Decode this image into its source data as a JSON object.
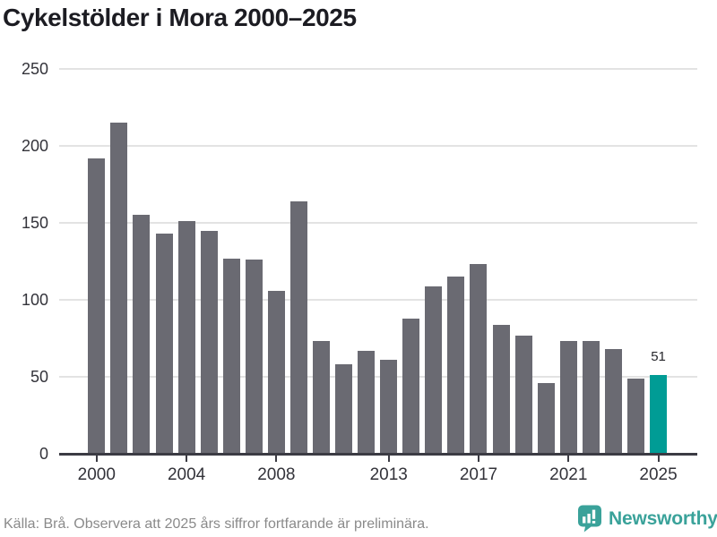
{
  "title": "Cykelstölder i Mora 2000–2025",
  "chart_data": {
    "type": "bar",
    "title": "Cykelstölder i Mora 2000–2025",
    "x": [
      2000,
      2001,
      2002,
      2003,
      2004,
      2005,
      2006,
      2007,
      2008,
      2009,
      2010,
      2011,
      2012,
      2013,
      2014,
      2015,
      2016,
      2017,
      2018,
      2019,
      2020,
      2021,
      2022,
      2023,
      2024,
      2025
    ],
    "values": [
      192,
      215,
      155,
      143,
      151,
      145,
      127,
      126,
      106,
      164,
      73,
      58,
      67,
      61,
      88,
      109,
      115,
      123,
      84,
      77,
      46,
      73,
      73,
      68,
      49,
      51
    ],
    "highlight_year": 2025,
    "highlight_value_label": "51",
    "y_ticks": [
      0,
      50,
      100,
      150,
      200,
      250
    ],
    "ylim": [
      0,
      250
    ],
    "x_tick_labels": [
      "2000",
      "2004",
      "2008",
      "2013",
      "2017",
      "2021",
      "2025"
    ],
    "grid": true,
    "legend": "none"
  },
  "footer": {
    "source_note": "Källa: Brå. Observera att 2025 års siffror fortfarande är preliminära."
  },
  "branding": {
    "name": "Newsworthy",
    "icon": "bar-chart-speech-bubble-icon"
  },
  "colors": {
    "bar_gray": "#6a6a72",
    "highlight_teal": "#009c95",
    "logo_teal": "#3aa29a",
    "gridline": "#e3e3e3",
    "axis": "#3b3b43",
    "title_text": "#1c1c22",
    "axis_label": "#33333a",
    "value_label": "#26262b",
    "footer_text": "#8a8a8a",
    "background": "#ffffff"
  }
}
